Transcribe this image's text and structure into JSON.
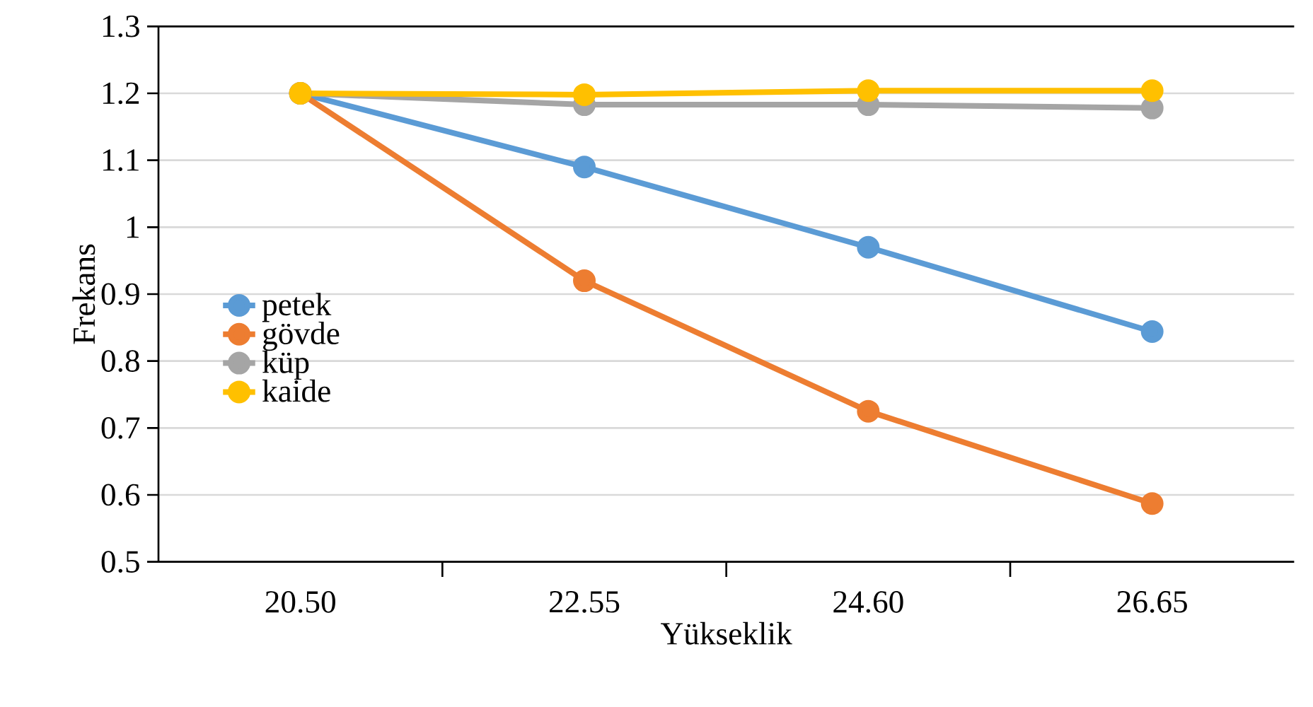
{
  "chart_data": {
    "type": "line",
    "xlabel": "Yükseklik",
    "ylabel": "Frekans",
    "categories": [
      "20.50",
      "22.55",
      "24.60",
      "26.65"
    ],
    "series": [
      {
        "name": "petek",
        "color": "#5b9bd5",
        "values": [
          1.2,
          1.09,
          0.97,
          0.844
        ]
      },
      {
        "name": "gövde",
        "color": "#ed7d31",
        "values": [
          1.2,
          0.92,
          0.725,
          0.587
        ]
      },
      {
        "name": "küp",
        "color": "#a5a5a5",
        "values": [
          1.2,
          1.183,
          1.183,
          1.178
        ]
      },
      {
        "name": "kaide",
        "color": "#ffc000",
        "values": [
          1.2,
          1.198,
          1.204,
          1.204
        ]
      }
    ],
    "ylim": [
      0.5,
      1.3
    ],
    "yticks": [
      0.5,
      0.6,
      0.7,
      0.8,
      0.9,
      1,
      1.1,
      1.2,
      1.3
    ],
    "grid": "y",
    "legend": "left",
    "marker": "circle",
    "line_style": "solid"
  }
}
